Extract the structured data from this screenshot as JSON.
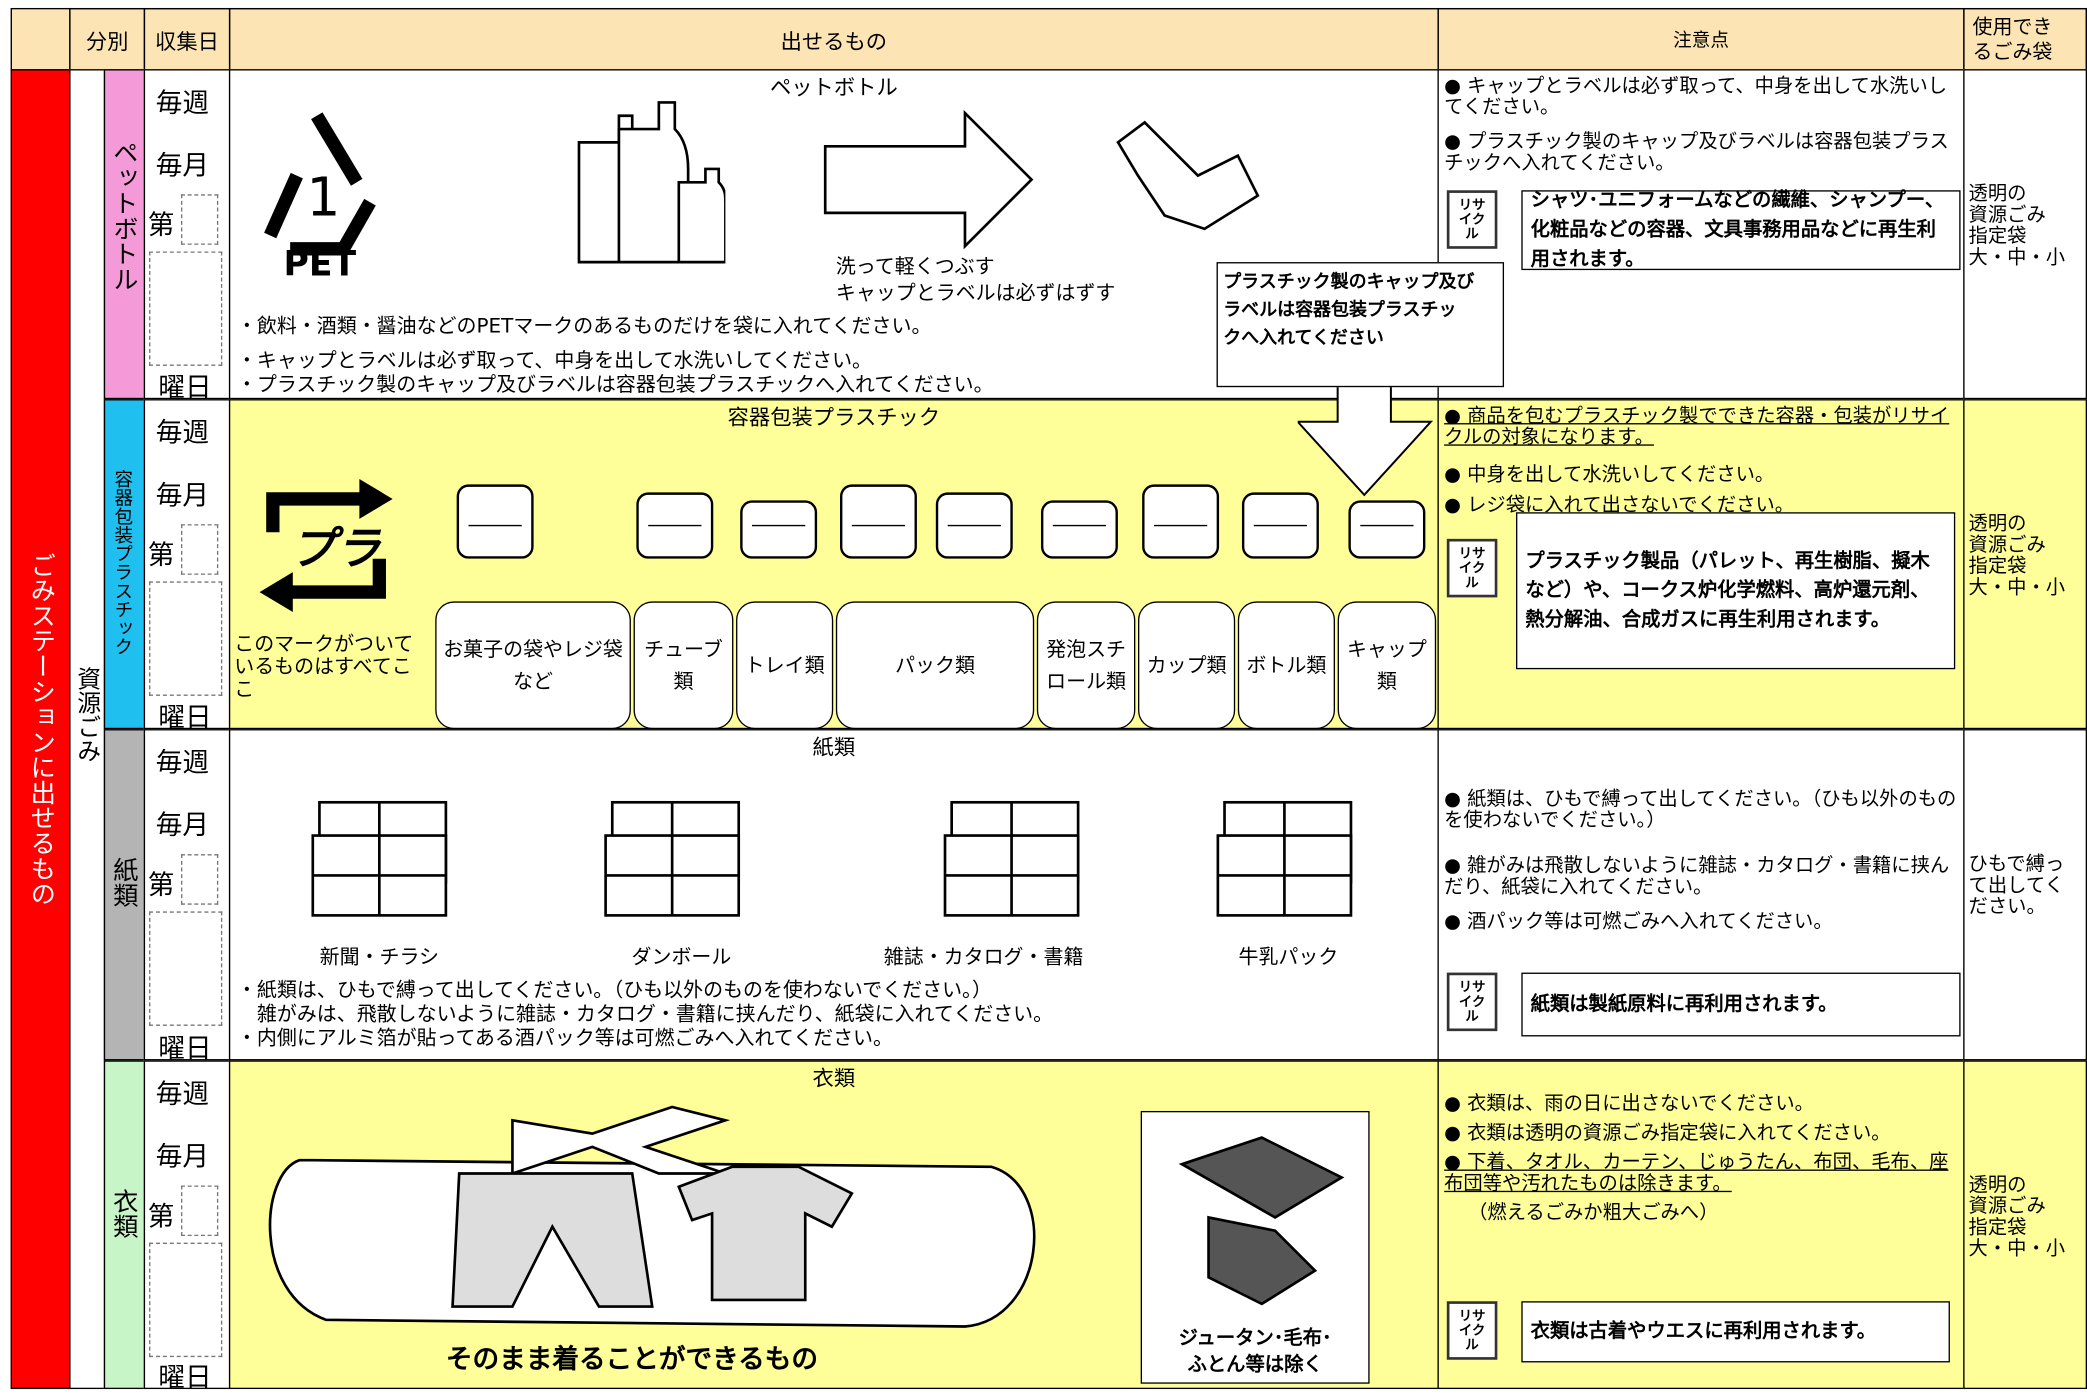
{
  "header": {
    "category": "分別",
    "date": "収集日",
    "items": "出せるもの",
    "notes": "注意点",
    "bag": [
      "使用でき",
      "るごみ袋"
    ]
  },
  "side_label": "ごみステーションに出せるもの",
  "group_label": "資源ごみ",
  "schedule": {
    "weekly": "毎週",
    "monthly": "毎月",
    "nth": "第",
    "weekday": "曜日"
  },
  "recycle_label": "リサイクル",
  "rows": [
    {
      "category": "ペットボトル",
      "title": "ペットボトル",
      "mark": "PET",
      "caption": [
        "洗って軽くつぶす",
        "キャップとラベルは必ずはずす"
      ],
      "bullets": [
        "・飲料・酒類・醤油などのPETマークのあるものだけを袋に入れてください。",
        "・キャップとラベルは必ず取って、中身を出して水洗いしてください。",
        "・プラスチック製のキャップ及びラベルは容器包装プラスチックへ入れてください。"
      ],
      "callout": [
        "プラスチック製のキャップ及び",
        "ラベルは容器包装プラスチッ",
        "クへ入れてください"
      ],
      "notes": [
        "● キャップとラベルは必ず取って、中身を出して水洗いしてください。",
        "● プラスチック製のキャップ及びラベルは容器包装プラスチックへ入れてください。"
      ],
      "recycle": "シャツ･ユニフォームなどの繊維、シャンプー、化粧品などの容器、文具事務用品などに再生利用されます。",
      "bag": [
        "透明の",
        "資源ごみ",
        "指定袋",
        "大・中・小"
      ]
    },
    {
      "category": "容器包装プラスチック",
      "title": "容器包装プラスチック",
      "mark": "プラ",
      "caption": "このマークがついているものはすべてここ",
      "items": [
        "お菓子の袋やレジ袋など",
        "チューブ類",
        "トレイ類",
        "パック類",
        "発泡スチロール類",
        "カップ類",
        "ボトル類",
        "キャップ類"
      ],
      "notes": [
        "● 商品を包むプラスチック製でできた容器・包装がリサイクルの対象になります。",
        "● 中身を出して水洗いしてください。",
        "● レジ袋に入れて出さないでください。"
      ],
      "recycle": "プラスチック製品（パレット、再生樹脂、擬木など）や、コークス炉化学燃料、高炉還元剤、熱分解油、合成ガスに再生利用されます。",
      "bag": [
        "透明の",
        "資源ごみ",
        "指定袋",
        "大・中・小"
      ]
    },
    {
      "category": "紙類",
      "title": "紙類",
      "items": [
        "新聞・チラシ",
        "ダンボール",
        "雑誌・カタログ・書籍",
        "牛乳パック"
      ],
      "bullets": [
        "・紙類は、ひもで縛って出してください。（ひも以外のものを使わないでください。）",
        "　雑がみは、飛散しないように雑誌・カタログ・書籍に挟んだり、紙袋に入れてください。",
        "・内側にアルミ箔が貼ってある酒パック等は可燃ごみへ入れてください。"
      ],
      "notes": [
        "● 紙類は、ひもで縛って出してください。（ひも以外のものを使わないでください。）",
        "● 雑がみは飛散しないように雑誌・カタログ・書籍に挟んだり、紙袋に入れてください。",
        "● 酒パック等は可燃ごみへ入れてください。"
      ],
      "recycle": "紙類は製紙原料に再利用されます。",
      "bag": [
        "ひもで縛っ",
        "て出してく",
        "ださい。"
      ]
    },
    {
      "category": "衣類",
      "title": "衣類",
      "caption": "そのまま着ることができるもの",
      "excluded": [
        "ジュータン･毛布･",
        "ふとん等は除く"
      ],
      "notes": [
        "● 衣類は、雨の日に出さないでください。",
        "● 衣類は透明の資源ごみ指定袋に入れてください。",
        "● 下着、タオル、カーテン、じゅうたん、布団、毛布、座布団等や汚れたものは除きます。",
        "（燃えるごみか粗大ごみへ）"
      ],
      "recycle": "衣類は古着やウエスに再利用されます。",
      "bag": [
        "透明の",
        "資源ごみ",
        "指定袋",
        "大・中・小"
      ]
    }
  ]
}
